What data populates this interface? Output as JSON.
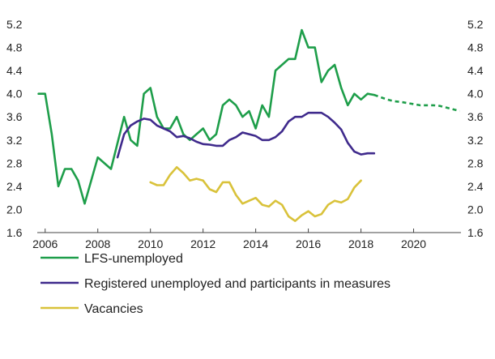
{
  "chart_data": {
    "type": "line",
    "title": "",
    "xlabel": "",
    "ylabel": "",
    "xlim": [
      2005.7,
      2021.8
    ],
    "ylim": [
      1.6,
      5.2
    ],
    "x_ticks": [
      "2006",
      "2008",
      "2010",
      "2012",
      "2014",
      "2016",
      "2018",
      "2020"
    ],
    "y_ticks": [
      "1.6",
      "2.0",
      "2.4",
      "2.8",
      "3.2",
      "3.6",
      "4.0",
      "4.4",
      "4.8",
      "5.2"
    ],
    "grid": false,
    "legend_position": "bottom-left",
    "series": [
      {
        "name": "LFS-unemployed",
        "color": "#1e9e4a",
        "style": "solid",
        "x": [
          2005.75,
          2006.0,
          2006.25,
          2006.5,
          2006.75,
          2007.0,
          2007.25,
          2007.5,
          2008.0,
          2008.5,
          2009.0,
          2009.25,
          2009.5,
          2009.75,
          2010.0,
          2010.25,
          2010.5,
          2010.75,
          2011.0,
          2011.25,
          2011.5,
          2011.75,
          2012.0,
          2012.25,
          2012.5,
          2012.75,
          2013.0,
          2013.25,
          2013.5,
          2013.75,
          2014.0,
          2014.25,
          2014.5,
          2014.75,
          2015.0,
          2015.25,
          2015.5,
          2015.75,
          2016.0,
          2016.25,
          2016.5,
          2016.75,
          2017.0,
          2017.25,
          2017.5,
          2017.75,
          2018.0,
          2018.25,
          2018.5
        ],
        "y": [
          4.0,
          4.0,
          3.3,
          2.4,
          2.7,
          2.7,
          2.5,
          2.1,
          2.9,
          2.7,
          3.6,
          3.2,
          3.1,
          4.0,
          4.1,
          3.6,
          3.4,
          3.4,
          3.6,
          3.3,
          3.2,
          3.3,
          3.4,
          3.2,
          3.3,
          3.8,
          3.9,
          3.8,
          3.6,
          3.7,
          3.4,
          3.8,
          3.6,
          4.4,
          4.5,
          4.6,
          4.6,
          5.1,
          4.8,
          4.8,
          4.2,
          4.4,
          4.5,
          4.1,
          3.8,
          4.0,
          3.9,
          4.0,
          3.98
        ]
      },
      {
        "name": "",
        "color": "#1e9e4a",
        "style": "dashed",
        "x": [
          2018.5,
          2018.75,
          2019.0,
          2019.25,
          2019.5,
          2019.75,
          2020.0,
          2020.25,
          2020.5,
          2020.75,
          2021.0,
          2021.25,
          2021.5,
          2021.75
        ],
        "y": [
          3.98,
          3.94,
          3.9,
          3.87,
          3.86,
          3.84,
          3.82,
          3.8,
          3.8,
          3.8,
          3.79,
          3.76,
          3.73,
          3.7
        ]
      },
      {
        "name": "Registered unemployed and participants in measures",
        "color": "#3f2a8c",
        "style": "solid",
        "x": [
          2008.75,
          2009.0,
          2009.25,
          2009.5,
          2009.75,
          2010.0,
          2010.25,
          2010.5,
          2010.75,
          2011.0,
          2011.25,
          2011.5,
          2011.75,
          2012.0,
          2012.25,
          2012.5,
          2012.75,
          2013.0,
          2013.25,
          2013.5,
          2013.75,
          2014.0,
          2014.25,
          2014.5,
          2014.75,
          2015.0,
          2015.25,
          2015.5,
          2015.75,
          2016.0,
          2016.25,
          2016.5,
          2016.75,
          2017.0,
          2017.25,
          2017.5,
          2017.75,
          2018.0,
          2018.25,
          2018.5
        ],
        "y": [
          2.9,
          3.3,
          3.45,
          3.52,
          3.57,
          3.55,
          3.45,
          3.4,
          3.35,
          3.25,
          3.27,
          3.23,
          3.17,
          3.13,
          3.12,
          3.1,
          3.1,
          3.2,
          3.25,
          3.33,
          3.3,
          3.27,
          3.2,
          3.2,
          3.25,
          3.35,
          3.52,
          3.6,
          3.6,
          3.67,
          3.67,
          3.67,
          3.6,
          3.5,
          3.38,
          3.15,
          3.0,
          2.95,
          2.97,
          2.97
        ]
      },
      {
        "name": "Vacancies",
        "color": "#d9c23a",
        "style": "solid",
        "x": [
          2010.0,
          2010.25,
          2010.5,
          2010.75,
          2011.0,
          2011.25,
          2011.5,
          2011.75,
          2012.0,
          2012.25,
          2012.5,
          2012.75,
          2013.0,
          2013.25,
          2013.5,
          2013.75,
          2014.0,
          2014.25,
          2014.5,
          2014.75,
          2015.0,
          2015.25,
          2015.5,
          2015.75,
          2016.0,
          2016.25,
          2016.5,
          2016.75,
          2017.0,
          2017.25,
          2017.5,
          2017.75,
          2018.0
        ],
        "y": [
          2.47,
          2.42,
          2.42,
          2.6,
          2.73,
          2.63,
          2.5,
          2.53,
          2.5,
          2.35,
          2.3,
          2.47,
          2.47,
          2.25,
          2.1,
          2.15,
          2.2,
          2.08,
          2.05,
          2.15,
          2.08,
          1.88,
          1.8,
          1.9,
          1.97,
          1.88,
          1.92,
          2.08,
          2.15,
          2.12,
          2.18,
          2.38,
          2.5
        ]
      }
    ]
  },
  "legend": {
    "items": [
      {
        "label": "LFS-unemployed",
        "color": "#1e9e4a"
      },
      {
        "label": "Registered unemployed and participants in measures",
        "color": "#3f2a8c"
      },
      {
        "label": "Vacancies",
        "color": "#d9c23a"
      }
    ]
  }
}
